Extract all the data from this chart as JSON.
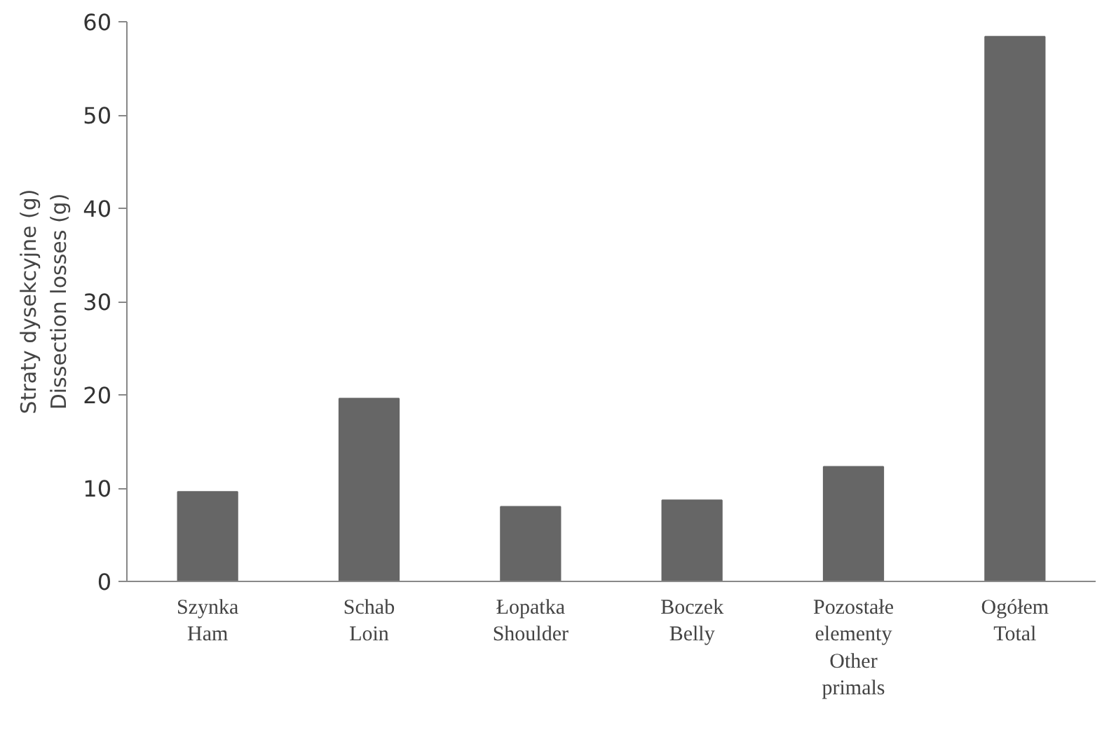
{
  "chart_data": {
    "type": "bar",
    "ylabel": "Straty dysekcyjne (g)\nDissection losses (g)",
    "categories": [
      "Szynka\nHam",
      "Schab\nLoin",
      "Łopatka\nShoulder",
      "Boczek\nBelly",
      "Pozostałe\nelementy\nOther\nprimals",
      "Ogółem\nTotal"
    ],
    "values": [
      9.6,
      19.6,
      8.0,
      8.7,
      12.3,
      58.4
    ],
    "color": "#666666",
    "ylim": [
      0,
      60
    ],
    "yticks": [
      0,
      10,
      20,
      30,
      40,
      50,
      60
    ],
    "grid": false
  }
}
